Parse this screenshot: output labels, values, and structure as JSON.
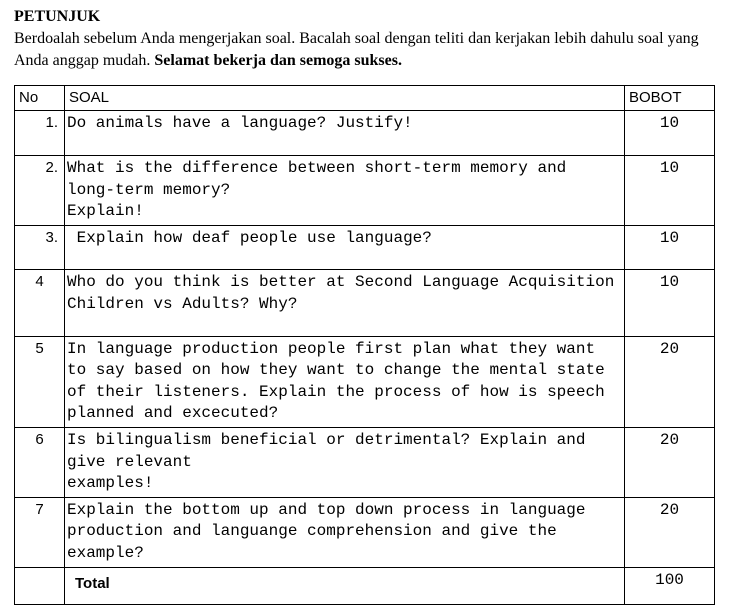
{
  "heading": "PETUNJUK",
  "instructions_plain": "Berdoalah sebelum Anda mengerjakan soal. Bacalah soal dengan teliti dan kerjakan lebih dahulu soal yang Anda anggap mudah. ",
  "instructions_bold": "Selamat bekerja dan semoga sukses.",
  "columns": {
    "no": "No",
    "soal": "SOAL",
    "bobot": "BOBOT"
  },
  "rows": [
    {
      "no": "1.",
      "soal": "Do animals have a language? Justify!",
      "bobot": "10",
      "tall": true
    },
    {
      "no": "2.",
      "soal": "What is the difference between short-term memory and long-term memory?\nExplain!",
      "bobot": "10"
    },
    {
      "no": "3.",
      "soal": " Explain how deaf people use language?",
      "bobot": "10",
      "tall": true
    },
    {
      "no": "4",
      "soal": "Who do you think is better at Second Language Acquisition Children vs Adults? Why?",
      "bobot": "10",
      "tall": true,
      "center": true
    },
    {
      "no": "5",
      "soal": "In language production people first plan what they want to say based on how they want to change the mental state of their listeners. Explain the process of how is speech planned and excecuted?",
      "bobot": "20",
      "center": true
    },
    {
      "no": "6",
      "soal": "Is bilingualism beneficial or detrimental? Explain and give relevant\nexamples!",
      "bobot": "20",
      "center": true
    },
    {
      "no": "7",
      "soal": "Explain the bottom up and top down process in language production and languange comprehension and give the example?",
      "bobot": "20",
      "center": true
    }
  ],
  "total": {
    "label": "Total",
    "value": "100"
  }
}
